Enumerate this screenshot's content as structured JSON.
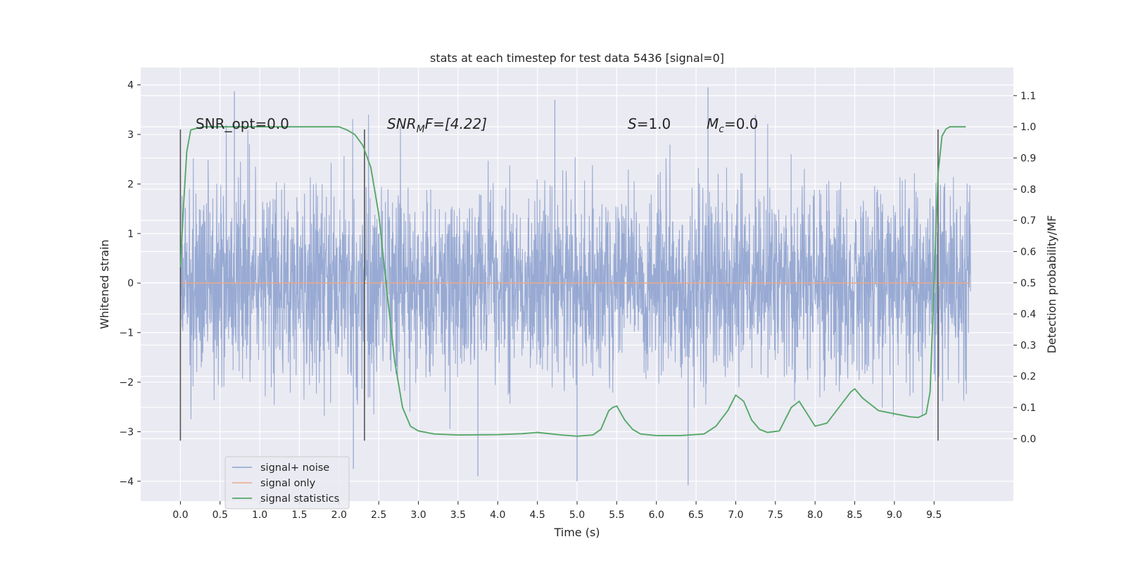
{
  "chart_data": {
    "type": "line",
    "title": "stats at each timestep for test data 5436 [signal=0]",
    "xlabel": "Time (s)",
    "ylabel": "Whitened strain",
    "ylabel_right": "Detection probability/MF",
    "xlim": [
      -0.5,
      10.5
    ],
    "ylim": [
      -4.4,
      4.35
    ],
    "ylim_right": [
      -0.2,
      1.19
    ],
    "x_ticks": [
      "0.0",
      "0.5",
      "1.0",
      "1.5",
      "2.0",
      "2.5",
      "3.0",
      "3.5",
      "4.0",
      "4.5",
      "5.0",
      "5.5",
      "6.0",
      "6.5",
      "7.0",
      "7.5",
      "8.0",
      "8.5",
      "9.0",
      "9.5"
    ],
    "y_ticks": [
      "−4",
      "−3",
      "−2",
      "−1",
      "0",
      "1",
      "2",
      "3",
      "4"
    ],
    "y_ticks_right": [
      "0.0",
      "0.1",
      "0.2",
      "0.3",
      "0.4",
      "0.5",
      "0.6",
      "0.7",
      "0.8",
      "0.9",
      "1.0",
      "1.1"
    ],
    "grid": true,
    "legend_placement": "lower-left",
    "annotations": {
      "snr_opt": "SNR_opt=0.0",
      "snr_mf_base": "SNR",
      "snr_mf_sub": "M",
      "snr_mf_rest": "F=[4.22]",
      "s_italic": "S",
      "s_rest": "=1.0",
      "mc_base": "M",
      "mc_sub": "c",
      "mc_rest": "=0.0"
    },
    "segment_boundaries_s": [
      0.0,
      2.32,
      9.55
    ],
    "series": [
      {
        "name": "signal+ noise",
        "axis": "left",
        "color": "#8fa3cf",
        "x_range": [
          0.0,
          9.96
        ],
        "typical_band": [
          -1.3,
          1.2
        ],
        "typical_peaks": [
          -2.6,
          2.6
        ],
        "extreme_max": 3.95,
        "extreme_min": -4.08
      },
      {
        "name": "signal only",
        "axis": "left",
        "color": "#e8a98a",
        "x": [
          0.0,
          9.96
        ],
        "values": [
          0.0,
          0.0
        ]
      },
      {
        "name": "signal statistics",
        "axis": "right",
        "color": "#55a868",
        "x": [
          0.0,
          0.04,
          0.08,
          0.13,
          0.2,
          0.3,
          0.5,
          1.0,
          1.5,
          2.0,
          2.1,
          2.2,
          2.3,
          2.4,
          2.5,
          2.6,
          2.7,
          2.8,
          2.9,
          3.0,
          3.2,
          3.5,
          4.0,
          4.3,
          4.5,
          4.8,
          5.0,
          5.2,
          5.3,
          5.4,
          5.45,
          5.5,
          5.6,
          5.7,
          5.8,
          6.0,
          6.3,
          6.6,
          6.75,
          6.9,
          7.0,
          7.1,
          7.2,
          7.3,
          7.4,
          7.55,
          7.7,
          7.8,
          7.9,
          8.0,
          8.15,
          8.3,
          8.45,
          8.5,
          8.6,
          8.8,
          9.0,
          9.2,
          9.3,
          9.4,
          9.45,
          9.5,
          9.55,
          9.6,
          9.65,
          9.7,
          9.8,
          9.9
        ],
        "values": [
          0.55,
          0.75,
          0.92,
          0.99,
          0.995,
          1.0,
          1.0,
          1.0,
          1.0,
          1.0,
          0.99,
          0.975,
          0.94,
          0.87,
          0.72,
          0.48,
          0.25,
          0.1,
          0.04,
          0.025,
          0.015,
          0.012,
          0.013,
          0.016,
          0.02,
          0.012,
          0.008,
          0.012,
          0.03,
          0.09,
          0.1,
          0.105,
          0.06,
          0.03,
          0.015,
          0.01,
          0.01,
          0.015,
          0.04,
          0.09,
          0.14,
          0.12,
          0.06,
          0.03,
          0.02,
          0.025,
          0.1,
          0.12,
          0.08,
          0.04,
          0.05,
          0.1,
          0.15,
          0.16,
          0.13,
          0.09,
          0.08,
          0.07,
          0.068,
          0.08,
          0.15,
          0.5,
          0.85,
          0.97,
          0.993,
          1.0,
          1.0,
          1.0
        ]
      }
    ]
  }
}
